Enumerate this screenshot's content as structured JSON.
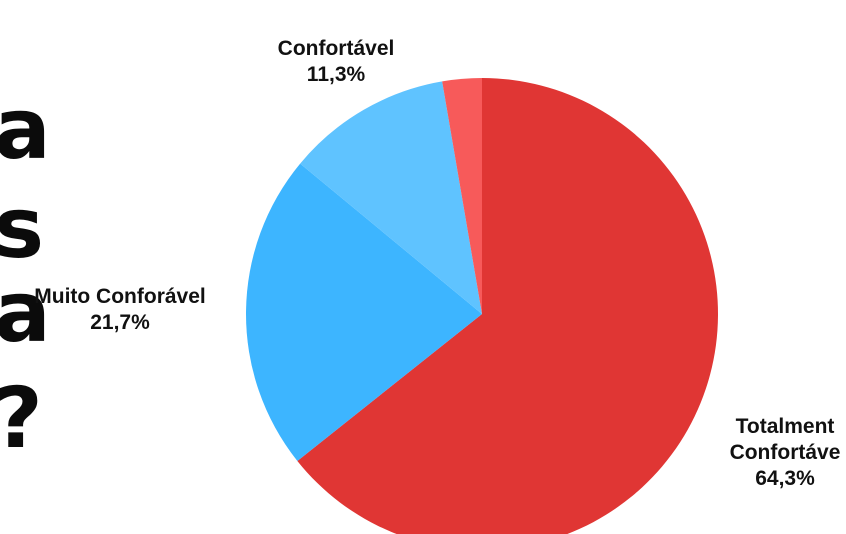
{
  "background_text": [
    "a",
    "s",
    "a",
    "?"
  ],
  "chart_data": {
    "type": "pie",
    "start_angle_deg": 0,
    "direction": "clockwise",
    "slices": [
      {
        "name": "Totalmente Confortável",
        "label_lines": [
          "Totalment",
          "Confortáve",
          "64,3%"
        ],
        "value": 64.3,
        "percent_label": "64,3%",
        "color": "#e03634"
      },
      {
        "name": "Muito Conforável",
        "label_lines": [
          "Muito Conforável",
          "21,7%"
        ],
        "value": 21.7,
        "percent_label": "21,7%",
        "color": "#3db5ff"
      },
      {
        "name": "Confortável",
        "label_lines": [
          "Confortável",
          "11,3%"
        ],
        "value": 11.3,
        "percent_label": "11,3%",
        "color": "#5fc3ff"
      },
      {
        "name": "",
        "label_lines": [],
        "value": 2.7,
        "percent_label": "",
        "color": "#f75a5a"
      }
    ]
  }
}
